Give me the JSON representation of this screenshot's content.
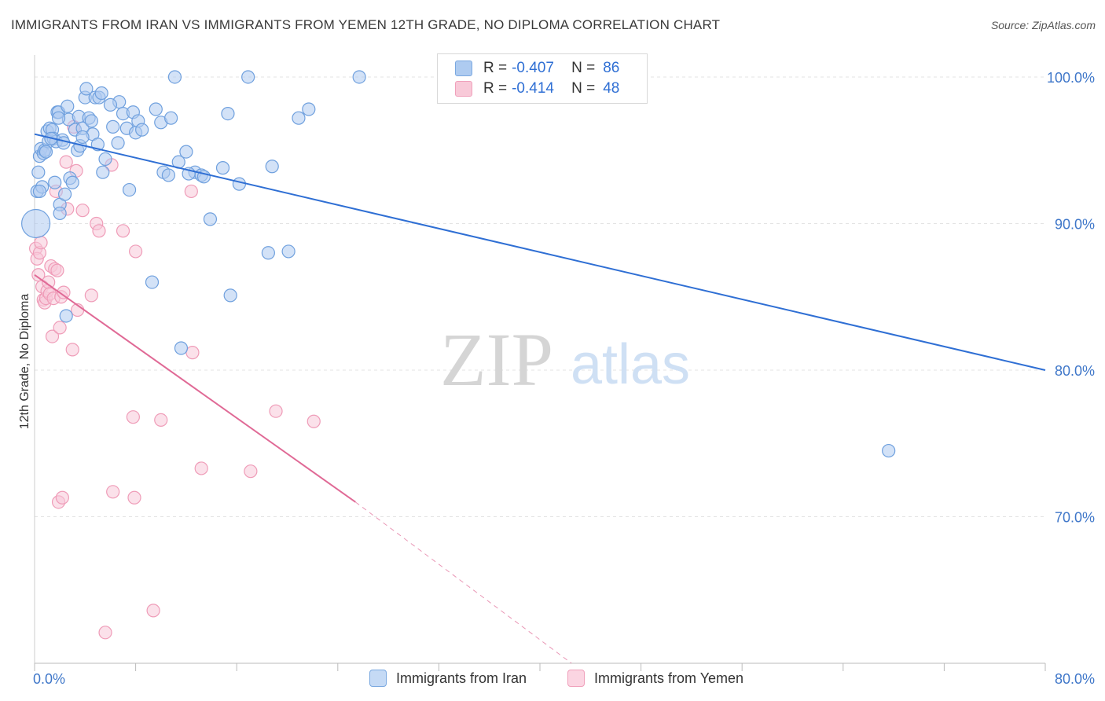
{
  "header": {
    "title": "IMMIGRANTS FROM IRAN VS IMMIGRANTS FROM YEMEN 12TH GRADE, NO DIPLOMA CORRELATION CHART",
    "source": "Source: ZipAtlas.com"
  },
  "watermark": {
    "zip": "ZIP",
    "atlas": "atlas"
  },
  "legend": {
    "iran": {
      "r_label": "R =",
      "r_value": "-0.407",
      "n_label": "N =",
      "n_value": "86"
    },
    "yemen": {
      "r_label": "R =",
      "r_value": "-0.414",
      "n_label": "N =",
      "n_value": "48"
    }
  },
  "bottom_legend": {
    "iran_label": "Immigrants from Iran",
    "yemen_label": "Immigrants from Yemen"
  },
  "colors": {
    "iran_fill": "#aecbf0",
    "iran_stroke": "#6fa0de",
    "iran_line": "#2f6fd4",
    "yemen_fill": "#f8c9d8",
    "yemen_stroke": "#ef9cb8",
    "yemen_line": "#e06a96",
    "tick_label": "#3f77c9",
    "grid": "#e3e3e3"
  },
  "chart_data": {
    "type": "scatter",
    "xlabel": "",
    "ylabel": "12th Grade, No Diploma",
    "xlim": [
      0,
      80
    ],
    "ylim": [
      60,
      101.5
    ],
    "x_ticks": [
      0,
      80
    ],
    "x_tick_labels": [
      "0.0%",
      "80.0%"
    ],
    "y_ticks": [
      100,
      90,
      80,
      70
    ],
    "y_tick_labels": [
      "100.0%",
      "90.0%",
      "80.0%",
      "70.0%"
    ],
    "grid": true,
    "legend_position": "top-center",
    "series": [
      {
        "name": "Immigrants from Iran",
        "trend": {
          "x": [
            0,
            80
          ],
          "y": [
            96.1,
            80.0
          ],
          "style": "solid"
        },
        "points": [
          [
            0.1,
            90.0
          ],
          [
            0.2,
            92.2
          ],
          [
            0.3,
            93.5
          ],
          [
            0.4,
            94.6
          ],
          [
            0.5,
            95.1
          ],
          [
            0.6,
            92.5
          ],
          [
            0.7,
            94.8
          ],
          [
            0.8,
            95.0
          ],
          [
            1.0,
            96.3
          ],
          [
            1.1,
            95.6
          ],
          [
            1.2,
            96.5
          ],
          [
            1.4,
            96.4
          ],
          [
            1.5,
            95.8
          ],
          [
            1.6,
            92.8
          ],
          [
            1.7,
            95.6
          ],
          [
            1.8,
            97.6
          ],
          [
            1.9,
            97.6
          ],
          [
            2.0,
            91.3
          ],
          [
            2.0,
            90.7
          ],
          [
            2.2,
            95.7
          ],
          [
            2.4,
            92.0
          ],
          [
            2.5,
            83.7
          ],
          [
            2.6,
            98.0
          ],
          [
            2.7,
            97.1
          ],
          [
            2.8,
            93.1
          ],
          [
            3.0,
            92.8
          ],
          [
            3.2,
            96.4
          ],
          [
            3.4,
            95.0
          ],
          [
            3.5,
            97.3
          ],
          [
            3.6,
            95.3
          ],
          [
            3.8,
            96.5
          ],
          [
            4.0,
            98.6
          ],
          [
            4.1,
            99.2
          ],
          [
            4.3,
            97.2
          ],
          [
            4.5,
            97.0
          ],
          [
            4.6,
            96.1
          ],
          [
            4.8,
            98.6
          ],
          [
            5.0,
            95.4
          ],
          [
            5.1,
            98.6
          ],
          [
            5.3,
            98.9
          ],
          [
            5.4,
            93.5
          ],
          [
            5.6,
            94.4
          ],
          [
            6.2,
            96.6
          ],
          [
            6.6,
            95.5
          ],
          [
            6.7,
            98.3
          ],
          [
            7.0,
            97.5
          ],
          [
            7.3,
            96.5
          ],
          [
            7.5,
            92.3
          ],
          [
            7.8,
            97.6
          ],
          [
            8.0,
            96.2
          ],
          [
            8.2,
            97.0
          ],
          [
            8.5,
            96.4
          ],
          [
            9.3,
            86.0
          ],
          [
            9.6,
            97.8
          ],
          [
            10.0,
            96.9
          ],
          [
            10.2,
            93.5
          ],
          [
            10.6,
            93.3
          ],
          [
            10.8,
            97.2
          ],
          [
            11.1,
            100.0
          ],
          [
            11.4,
            94.2
          ],
          [
            11.6,
            81.5
          ],
          [
            12.0,
            94.9
          ],
          [
            12.7,
            93.5
          ],
          [
            13.2,
            93.3
          ],
          [
            13.4,
            93.2
          ],
          [
            13.9,
            90.3
          ],
          [
            14.9,
            93.8
          ],
          [
            15.3,
            97.5
          ],
          [
            15.5,
            85.1
          ],
          [
            16.2,
            92.7
          ],
          [
            16.9,
            100.0
          ],
          [
            18.5,
            88.0
          ],
          [
            18.8,
            93.9
          ],
          [
            20.1,
            88.1
          ],
          [
            20.9,
            97.2
          ],
          [
            21.7,
            97.8
          ],
          [
            25.7,
            100.0
          ],
          [
            67.6,
            74.5
          ],
          [
            3.8,
            95.9
          ],
          [
            2.3,
            95.5
          ],
          [
            1.3,
            95.8
          ],
          [
            0.9,
            94.9
          ],
          [
            1.9,
            97.2
          ],
          [
            6.0,
            98.1
          ],
          [
            12.2,
            93.4
          ],
          [
            0.4,
            92.2
          ]
        ]
      },
      {
        "name": "Immigrants from Yemen",
        "trend": {
          "x": [
            0,
            25.4
          ],
          "y": [
            86.5,
            71.0
          ],
          "style": "solid",
          "extended_to": [
            42.5,
            60.0
          ],
          "extended_style": "dashed"
        },
        "points": [
          [
            0.1,
            88.3
          ],
          [
            0.2,
            87.6
          ],
          [
            0.3,
            86.5
          ],
          [
            0.4,
            88.0
          ],
          [
            0.6,
            85.7
          ],
          [
            0.7,
            84.8
          ],
          [
            0.8,
            84.6
          ],
          [
            0.9,
            84.9
          ],
          [
            1.0,
            85.4
          ],
          [
            1.1,
            86.0
          ],
          [
            1.2,
            85.2
          ],
          [
            1.3,
            87.1
          ],
          [
            1.4,
            82.3
          ],
          [
            1.5,
            84.9
          ],
          [
            1.6,
            86.9
          ],
          [
            1.7,
            92.2
          ],
          [
            1.8,
            86.8
          ],
          [
            1.9,
            71.0
          ],
          [
            2.0,
            82.9
          ],
          [
            2.1,
            85.0
          ],
          [
            2.2,
            71.3
          ],
          [
            2.3,
            85.3
          ],
          [
            2.5,
            94.2
          ],
          [
            3.0,
            81.4
          ],
          [
            3.1,
            96.6
          ],
          [
            3.3,
            93.6
          ],
          [
            3.4,
            84.1
          ],
          [
            3.8,
            90.9
          ],
          [
            4.5,
            85.1
          ],
          [
            4.9,
            90.0
          ],
          [
            5.1,
            89.5
          ],
          [
            5.6,
            62.1
          ],
          [
            6.1,
            94.0
          ],
          [
            6.2,
            71.7
          ],
          [
            7.0,
            89.5
          ],
          [
            7.8,
            76.8
          ],
          [
            7.9,
            71.3
          ],
          [
            8.0,
            88.1
          ],
          [
            9.4,
            63.6
          ],
          [
            10.0,
            76.6
          ],
          [
            12.4,
            92.2
          ],
          [
            12.5,
            81.2
          ],
          [
            13.2,
            73.3
          ],
          [
            17.1,
            73.1
          ],
          [
            19.1,
            77.2
          ],
          [
            22.1,
            76.5
          ],
          [
            0.5,
            88.7
          ],
          [
            2.6,
            91.0
          ]
        ]
      }
    ]
  }
}
